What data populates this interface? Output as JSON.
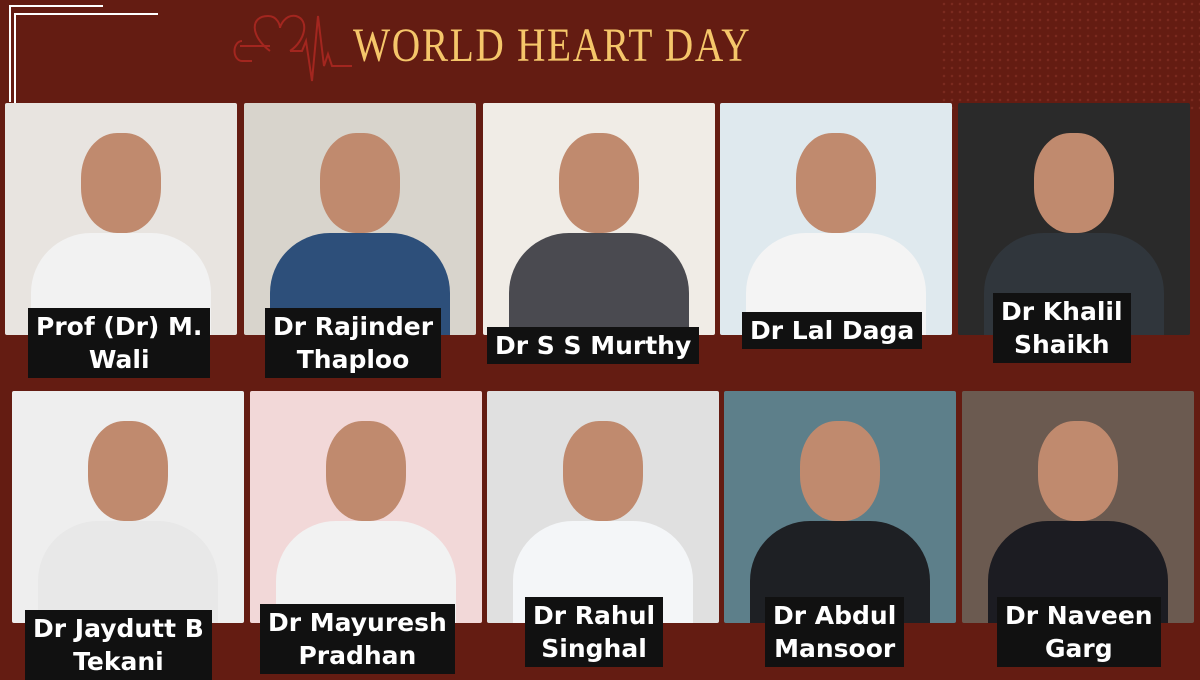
{
  "header": {
    "title": "WORLD HEART DAY",
    "icon": "heart-ecg-icon",
    "accent": "#f5c66a",
    "background": "#641c12"
  },
  "doctors": [
    {
      "line1": "Prof (Dr) M.",
      "line2": "Wali"
    },
    {
      "line1": "Dr Rajinder",
      "line2": "Thaploo"
    },
    {
      "line1": "Dr S S Murthy",
      "line2": ""
    },
    {
      "line1": "Dr Lal Daga",
      "line2": ""
    },
    {
      "line1": "Dr Khalil",
      "line2": "Shaikh"
    },
    {
      "line1": "Dr Jaydutt B",
      "line2": "Tekani"
    },
    {
      "line1": "Dr Mayuresh",
      "line2": "Pradhan"
    },
    {
      "line1": "Dr Rahul",
      "line2": "Singhal"
    },
    {
      "line1": "Dr Abdul",
      "line2": "Mansoor"
    },
    {
      "line1": "Dr Naveen",
      "line2": "Garg"
    }
  ]
}
